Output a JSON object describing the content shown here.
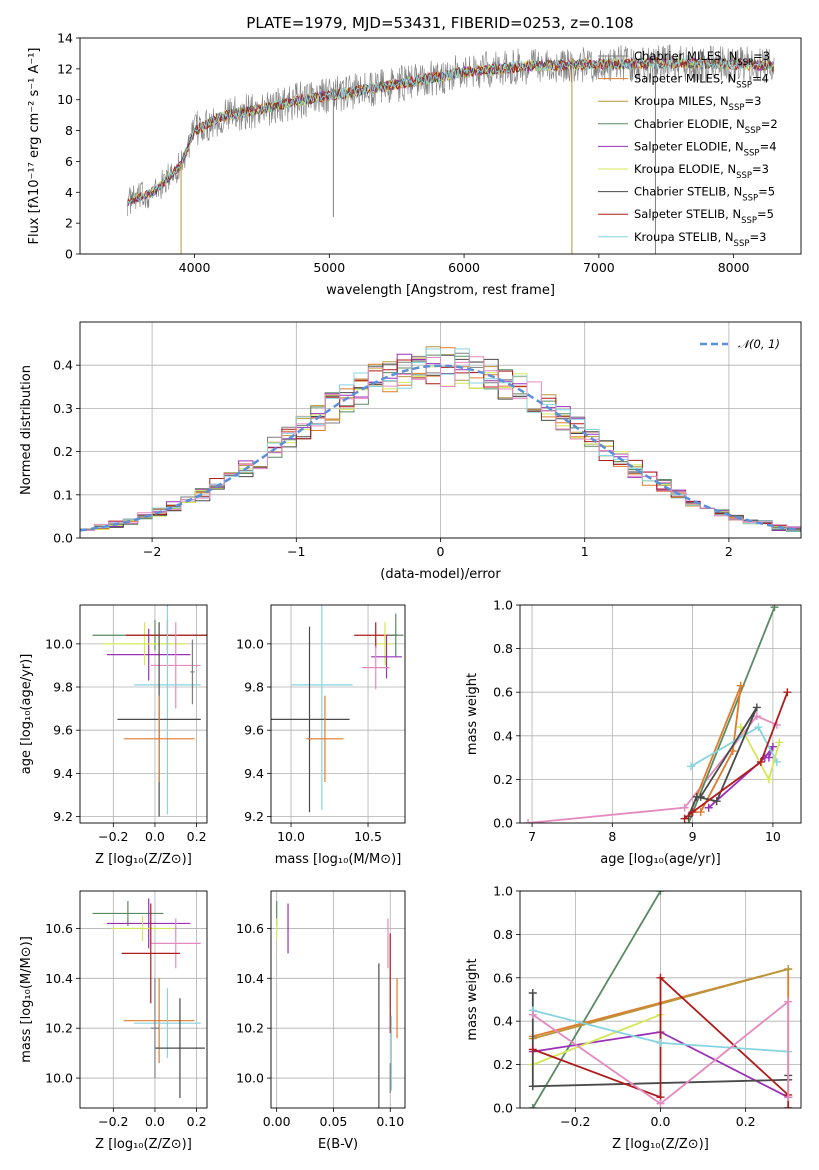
{
  "title": "PLATE=1979, MJD=53431, FIBERID=0253, z=0.108",
  "colors": {
    "gray": "#7f7f7f",
    "orange": "#e07b2c",
    "olive": "#b8963a",
    "green": "#5a8a62",
    "purple": "#9b30b8",
    "yellow": "#d4e857",
    "dark": "#4a4a4a",
    "red": "#b01c1c",
    "cyan": "#86d4e0",
    "pink": "#e58ac0",
    "gaussian": "#5b8fd8"
  },
  "chart_data": [
    {
      "id": "spectrum",
      "type": "line",
      "xlabel": "wavelength [Angstrom, rest frame]",
      "ylabel": "Flux [fλ10⁻¹⁷ erg cm⁻² s⁻¹ A⁻¹]",
      "xlim": [
        3150,
        8500
      ],
      "ylim": [
        0,
        14
      ],
      "xticks": [
        "4000",
        "5000",
        "6000",
        "7000",
        "8000"
      ],
      "yticks": [
        "0",
        "2",
        "4",
        "6",
        "8",
        "10",
        "12",
        "14"
      ],
      "legend_position": "right",
      "legend": [
        {
          "name": "Chabrier MILES, N",
          "sub": "SSP",
          "suffix": "=3",
          "color": "gray"
        },
        {
          "name": "Salpeter MILES, N",
          "sub": "SSP",
          "suffix": "=4",
          "color": "orange"
        },
        {
          "name": "Kroupa MILES, N",
          "sub": "SSP",
          "suffix": "=3",
          "color": "olive"
        },
        {
          "name": "Chabrier ELODIE, N",
          "sub": "SSP",
          "suffix": "=2",
          "color": "green"
        },
        {
          "name": "Salpeter ELODIE, N",
          "sub": "SSP",
          "suffix": "=4",
          "color": "purple"
        },
        {
          "name": "Kroupa ELODIE, N",
          "sub": "SSP",
          "suffix": "=3",
          "color": "yellow"
        },
        {
          "name": "Chabrier STELIB, N",
          "sub": "SSP",
          "suffix": "=5",
          "color": "dark"
        },
        {
          "name": "Salpeter STELIB, N",
          "sub": "SSP",
          "suffix": "=5",
          "color": "red"
        },
        {
          "name": "Kroupa STELIB, N",
          "sub": "SSP",
          "suffix": "=3",
          "color": "cyan"
        }
      ],
      "continuum": {
        "x": [
          3500,
          3700,
          3900,
          4000,
          4200,
          4500,
          4800,
          5100,
          5500,
          6000,
          6500,
          7000,
          7500,
          8000,
          8300
        ],
        "y": [
          3.4,
          4.0,
          5.8,
          8.0,
          8.9,
          9.4,
          10.0,
          10.4,
          11.0,
          11.8,
          12.2,
          12.3,
          12.4,
          12.3,
          12.2
        ]
      }
    },
    {
      "id": "residuals",
      "type": "bar",
      "xlabel": "(data-model)/error",
      "ylabel": "Normed distribution",
      "xlim": [
        -2.5,
        2.5
      ],
      "ylim": [
        0,
        0.5
      ],
      "xticks": [
        "−2",
        "−1",
        "0",
        "1",
        "2"
      ],
      "yticks": [
        "0.0",
        "0.1",
        "0.2",
        "0.3",
        "0.4"
      ],
      "legend": [
        {
          "name": "𝒩(0, 1)",
          "color": "gaussian"
        }
      ],
      "legend_position": "top-right",
      "bin_width": 0.1
    },
    {
      "id": "age-vs-Z",
      "type": "scatter",
      "xlabel": "Z [log₁₀(Z/Z⊙)]",
      "ylabel": "age  [log₁₀(age/yr)]",
      "xlim": [
        -0.36,
        0.25
      ],
      "ylim": [
        9.17,
        10.18
      ],
      "xticks": [
        "−0.2",
        "0.0",
        "0.2"
      ],
      "yticks": [
        "9.2",
        "9.4",
        "9.6",
        "9.8",
        "10.0"
      ],
      "points": [
        {
          "color": "green",
          "x": 0.0,
          "xerr": 0.3,
          "y": 10.04,
          "yerr": 0.07
        },
        {
          "color": "purple",
          "x": -0.03,
          "xerr": 0.2,
          "y": 9.95,
          "yerr": 0.12
        },
        {
          "color": "yellow",
          "x": -0.05,
          "xerr": 0.2,
          "y": 10.0,
          "yerr": 0.1
        },
        {
          "color": "red",
          "x": 0.06,
          "xerr": 0.2,
          "y": 10.04,
          "yerr": 0.07
        },
        {
          "color": "pink",
          "x": 0.1,
          "xerr": 0.12,
          "y": 9.9,
          "yerr": 0.2
        },
        {
          "color": "cyan",
          "x": 0.06,
          "xerr": 0.16,
          "y": 9.81,
          "yerr": 0.6
        },
        {
          "color": "dark",
          "x": 0.02,
          "xerr": 0.2,
          "y": 9.65,
          "yerr": 0.45
        },
        {
          "color": "orange",
          "x": 0.02,
          "xerr": 0.17,
          "y": 9.56,
          "yerr": 0.2
        },
        {
          "color": "gray",
          "x": 0.18,
          "xerr": 0.01,
          "y": 9.87,
          "yerr": 0.15
        }
      ]
    },
    {
      "id": "age-vs-mass",
      "type": "scatter",
      "xlabel": "mass [log₁₀(M/M⊙)]",
      "ylabel": "",
      "xlim": [
        9.87,
        10.74
      ],
      "ylim": [
        9.17,
        10.18
      ],
      "xticks": [
        "10.0",
        "10.5"
      ],
      "yticks": [
        "9.2",
        "9.4",
        "9.6",
        "9.8",
        "10.0"
      ],
      "points": [
        {
          "color": "red",
          "x": 10.55,
          "xerr": 0.14,
          "y": 10.04,
          "yerr": 0.06
        },
        {
          "color": "green",
          "x": 10.68,
          "xerr": 0.05,
          "y": 10.04,
          "yerr": 0.1
        },
        {
          "color": "yellow",
          "x": 10.61,
          "xerr": 0.05,
          "y": 10.0,
          "yerr": 0.1
        },
        {
          "color": "purple",
          "x": 10.62,
          "xerr": 0.1,
          "y": 9.94,
          "yerr": 0.1
        },
        {
          "color": "pink",
          "x": 10.55,
          "xerr": 0.09,
          "y": 9.89,
          "yerr": 0.1
        },
        {
          "color": "cyan",
          "x": 10.2,
          "xerr": 0.2,
          "y": 9.81,
          "yerr": 0.58
        },
        {
          "color": "dark",
          "x": 10.12,
          "xerr": 0.26,
          "y": 9.65,
          "yerr": 0.43
        },
        {
          "color": "orange",
          "x": 10.22,
          "xerr": 0.12,
          "y": 9.56,
          "yerr": 0.2
        }
      ]
    },
    {
      "id": "weight-vs-age",
      "type": "line",
      "xlabel": "age  [log₁₀(age/yr)]",
      "ylabel": "mass weight",
      "xlim": [
        6.85,
        10.35
      ],
      "ylim": [
        0,
        1.0
      ],
      "xticks": [
        "7",
        "8",
        "9",
        "10"
      ],
      "yticks": [
        "0.0",
        "0.2",
        "0.4",
        "0.6",
        "0.8",
        "1.0"
      ],
      "series": [
        {
          "color": "pink",
          "x": [
            6.95,
            8.9,
            9.8,
            10.05
          ],
          "y": [
            0.0,
            0.07,
            0.49,
            0.45
          ]
        },
        {
          "color": "green",
          "x": [
            8.95,
            10.02
          ],
          "y": [
            0.0,
            0.99
          ]
        },
        {
          "color": "orange",
          "x": [
            8.95,
            9.6,
            9.5,
            9.1
          ],
          "y": [
            0.03,
            0.63,
            0.33,
            0.05
          ]
        },
        {
          "color": "purple",
          "x": [
            9.2,
            9.9,
            10.0,
            9.95
          ],
          "y": [
            0.07,
            0.3,
            0.35,
            0.3
          ]
        },
        {
          "color": "cyan",
          "x": [
            8.98,
            9.82,
            10.05
          ],
          "y": [
            0.26,
            0.44,
            0.28
          ]
        },
        {
          "color": "yellow",
          "x": [
            9.6,
            9.95,
            10.08
          ],
          "y": [
            0.44,
            0.2,
            0.37
          ]
        },
        {
          "color": "dark",
          "x": [
            8.95,
            9.05,
            9.3,
            9.8,
            9.1
          ],
          "y": [
            0.03,
            0.12,
            0.1,
            0.53,
            0.12
          ]
        },
        {
          "color": "red",
          "x": [
            8.9,
            9.0,
            9.85,
            10.18
          ],
          "y": [
            0.02,
            0.05,
            0.28,
            0.6
          ]
        }
      ]
    },
    {
      "id": "mass-vs-Z",
      "type": "scatter",
      "xlabel": "Z [log₁₀(Z/Z⊙)]",
      "ylabel": "mass [log₁₀(M/M⊙)]",
      "xlim": [
        -0.36,
        0.25
      ],
      "ylim": [
        9.88,
        10.75
      ],
      "xticks": [
        "−0.2",
        "0.0",
        "0.2"
      ],
      "yticks": [
        "10.0",
        "10.2",
        "10.4",
        "10.6"
      ],
      "points": [
        {
          "color": "green",
          "x": -0.13,
          "xerr": 0.17,
          "y": 10.66,
          "yerr": 0.05
        },
        {
          "color": "purple",
          "x": -0.03,
          "xerr": 0.2,
          "y": 10.62,
          "yerr": 0.1
        },
        {
          "color": "yellow",
          "x": -0.06,
          "xerr": 0.15,
          "y": 10.6,
          "yerr": 0.05
        },
        {
          "color": "pink",
          "x": 0.1,
          "xerr": 0.12,
          "y": 10.54,
          "yerr": 0.1
        },
        {
          "color": "red",
          "x": -0.02,
          "xerr": 0.14,
          "y": 10.5,
          "yerr": 0.2
        },
        {
          "color": "orange",
          "x": 0.02,
          "xerr": 0.17,
          "y": 10.23,
          "yerr": 0.17
        },
        {
          "color": "cyan",
          "x": 0.06,
          "xerr": 0.16,
          "y": 10.22,
          "yerr": 0.14
        },
        {
          "color": "dark",
          "x": 0.12,
          "xerr": 0.12,
          "y": 10.12,
          "yerr": 0.2
        },
        {
          "color": "gray",
          "x": 0.0,
          "xerr": 0.02,
          "y": 10.2,
          "yerr": 0.2
        }
      ]
    },
    {
      "id": "mass-vs-EBV",
      "type": "scatter",
      "xlabel": "E(B-V)",
      "ylabel": "",
      "xlim": [
        -0.005,
        0.113
      ],
      "ylim": [
        9.88,
        10.75
      ],
      "xticks": [
        "0.00",
        "0.05",
        "0.10"
      ],
      "yticks": [
        "10.0",
        "10.2",
        "10.4",
        "10.6"
      ],
      "points": [
        {
          "color": "green",
          "x": 0.0,
          "yerr": 0.05,
          "y": 10.66
        },
        {
          "color": "yellow",
          "x": 0.0,
          "yerr": 0.04,
          "y": 10.6
        },
        {
          "color": "purple",
          "x": 0.01,
          "yerr": 0.1,
          "y": 10.6
        },
        {
          "color": "pink",
          "x": 0.098,
          "yerr": 0.1,
          "y": 10.54
        },
        {
          "color": "red",
          "x": 0.1,
          "yerr": 0.2,
          "y": 10.38
        },
        {
          "color": "orange",
          "x": 0.106,
          "yerr": 0.12,
          "y": 10.28
        },
        {
          "color": "dark",
          "x": 0.09,
          "yerr": 0.33,
          "y": 10.13
        },
        {
          "color": "cyan",
          "x": 0.101,
          "yerr": 0.15,
          "y": 10.1
        },
        {
          "color": "gray",
          "x": 0.1,
          "yerr": 0.06,
          "y": 10.0
        }
      ]
    },
    {
      "id": "weight-vs-Z",
      "type": "line",
      "xlabel": "Z [log₁₀(Z/Z⊙)]",
      "ylabel": "mass weight",
      "xlim": [
        -0.33,
        0.33
      ],
      "ylim": [
        0,
        1.0
      ],
      "xticks": [
        "−0.2",
        "0.0",
        "0.2"
      ],
      "yticks": [
        "0.0",
        "0.2",
        "0.4",
        "0.6",
        "0.8",
        "1.0"
      ],
      "series": [
        {
          "color": "green",
          "x": [
            -0.3,
            0.0
          ],
          "y": [
            0.0,
            1.0
          ]
        },
        {
          "color": "orange",
          "x": [
            -0.3,
            0.3,
            0.3
          ],
          "y": [
            0.33,
            0.64,
            0.05
          ]
        },
        {
          "color": "olive",
          "x": [
            -0.3,
            0.3
          ],
          "y": [
            0.32,
            0.64
          ]
        },
        {
          "color": "purple",
          "x": [
            -0.3,
            0.0,
            0.3
          ],
          "y": [
            0.26,
            0.35,
            0.05
          ]
        },
        {
          "color": "yellow",
          "x": [
            -0.3,
            0.0
          ],
          "y": [
            0.2,
            0.43
          ]
        },
        {
          "color": "dark",
          "x": [
            -0.3,
            -0.3,
            0.3,
            0.3
          ],
          "y": [
            0.53,
            0.1,
            0.13,
            0.15
          ]
        },
        {
          "color": "red",
          "x": [
            -0.3,
            0.0,
            0.0,
            0.3,
            0.3
          ],
          "y": [
            0.27,
            0.05,
            0.6,
            0.06,
            0.0
          ]
        },
        {
          "color": "cyan",
          "x": [
            -0.3,
            0.0,
            0.3
          ],
          "y": [
            0.45,
            0.3,
            0.26
          ]
        },
        {
          "color": "pink",
          "x": [
            -0.3,
            0.0,
            0.3,
            0.3
          ],
          "y": [
            0.43,
            0.02,
            0.49,
            0.05
          ]
        }
      ]
    }
  ]
}
